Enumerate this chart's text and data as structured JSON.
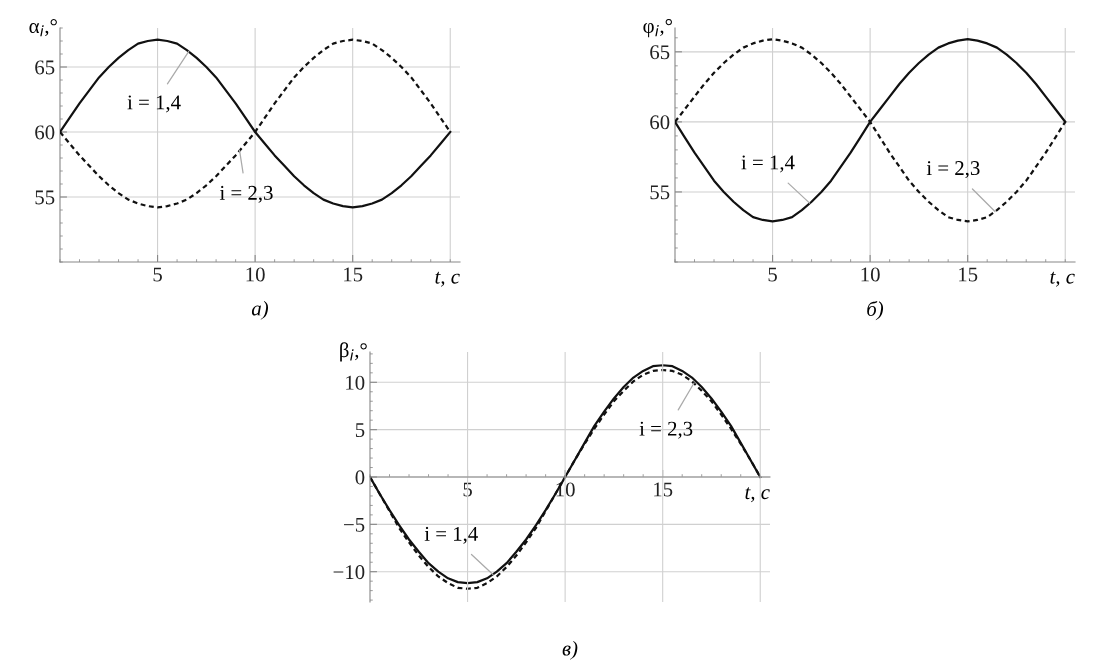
{
  "chart_data": [
    {
      "type": "line",
      "xlabel": "t, c",
      "ylabel": "α$_{i}$,°",
      "xlim": [
        0,
        20.5
      ],
      "ylim": [
        50,
        68
      ],
      "xticks": [
        5,
        10,
        15
      ],
      "ref_lines": [
        {
          "axis": "x",
          "value": 20,
          "color": "#d0d0d0"
        }
      ],
      "yticks": [
        55,
        60,
        65
      ],
      "grid": true,
      "x": [
        0,
        0.5,
        1,
        1.5,
        2,
        2.5,
        3,
        3.5,
        4,
        4.5,
        5,
        5.5,
        6,
        6.5,
        7,
        7.5,
        8,
        8.5,
        9,
        9.5,
        10,
        10.5,
        11,
        11.5,
        12,
        12.5,
        13,
        13.5,
        14,
        14.5,
        15,
        15.5,
        16,
        16.5,
        17,
        17.5,
        18,
        18.5,
        19,
        19.5,
        20
      ],
      "series": [
        {
          "color": "#111111",
          "line_style": "solid",
          "values": [
            60,
            61.1,
            62.2,
            63.2,
            64.2,
            65.0,
            65.7,
            66.3,
            66.8,
            67.0,
            67.1,
            67.0,
            66.8,
            66.3,
            65.7,
            65.0,
            64.2,
            63.2,
            62.2,
            61.1,
            60,
            59.1,
            58.2,
            57.4,
            56.6,
            55.9,
            55.3,
            54.8,
            54.5,
            54.3,
            54.2,
            54.3,
            54.5,
            54.8,
            55.3,
            55.9,
            56.6,
            57.4,
            58.2,
            59.1,
            60
          ]
        },
        {
          "color": "#111111",
          "line_style": "dashed",
          "values": [
            60,
            59.1,
            58.2,
            57.4,
            56.6,
            55.9,
            55.3,
            54.8,
            54.5,
            54.3,
            54.2,
            54.3,
            54.5,
            54.8,
            55.3,
            55.9,
            56.6,
            57.4,
            58.2,
            59.1,
            60,
            61.1,
            62.2,
            63.2,
            64.2,
            65.0,
            65.7,
            66.3,
            66.8,
            67.0,
            67.1,
            67.0,
            66.8,
            66.3,
            65.7,
            65.0,
            64.2,
            63.2,
            62.2,
            61.1,
            60
          ]
        }
      ],
      "annotations": [
        {
          "text": "i = 1,4",
          "x": 6.6,
          "y": 66.2
        },
        {
          "text": "i = 2,3",
          "x": 9.2,
          "y": 58.6
        },
        "а)"
      ]
    },
    {
      "type": "line",
      "xlabel": "t, c",
      "ylabel": "φ$_{i}$,°",
      "xlim": [
        0,
        20.5
      ],
      "ylim": [
        50,
        66.7
      ],
      "xticks": [
        5,
        10,
        15
      ],
      "ref_lines": [
        {
          "axis": "x",
          "value": 20,
          "color": "#d0d0d0"
        }
      ],
      "yticks": [
        55,
        60,
        65
      ],
      "grid": true,
      "x": [
        0,
        0.5,
        1,
        1.5,
        2,
        2.5,
        3,
        3.5,
        4,
        4.5,
        5,
        5.5,
        6,
        6.5,
        7,
        7.5,
        8,
        8.5,
        9,
        9.5,
        10,
        10.5,
        11,
        11.5,
        12,
        12.5,
        13,
        13.5,
        14,
        14.5,
        15,
        15.5,
        16,
        16.5,
        17,
        17.5,
        18,
        18.5,
        19,
        19.5,
        20
      ],
      "series": [
        {
          "color": "#111111",
          "line_style": "solid",
          "values": [
            60,
            58.9,
            57.8,
            56.8,
            55.8,
            55.0,
            54.3,
            53.7,
            53.2,
            53.0,
            52.9,
            53.0,
            53.2,
            53.7,
            54.3,
            55.0,
            55.8,
            56.8,
            57.8,
            58.9,
            60,
            60.9,
            61.8,
            62.7,
            63.5,
            64.2,
            64.8,
            65.3,
            65.6,
            65.8,
            65.9,
            65.8,
            65.6,
            65.3,
            64.8,
            64.2,
            63.5,
            62.7,
            61.8,
            60.9,
            60
          ]
        },
        {
          "color": "#111111",
          "line_style": "dashed",
          "values": [
            60,
            60.9,
            61.8,
            62.7,
            63.5,
            64.2,
            64.8,
            65.3,
            65.6,
            65.8,
            65.9,
            65.8,
            65.6,
            65.3,
            64.8,
            64.2,
            63.5,
            62.7,
            61.8,
            60.9,
            60,
            58.9,
            57.8,
            56.8,
            55.8,
            55.0,
            54.3,
            53.7,
            53.2,
            53.0,
            52.9,
            53.0,
            53.2,
            53.7,
            54.3,
            55.0,
            55.8,
            56.8,
            57.8,
            58.9,
            60
          ]
        }
      ],
      "annotations": [
        {
          "text": "i = 1,4",
          "x": 6.9,
          "y": 54.2
        },
        {
          "text": "i = 2,3",
          "x": 16.4,
          "y": 53.6
        },
        "б)"
      ]
    },
    {
      "type": "line",
      "xlabel": "t, c",
      "ylabel": "β$_{i}$,°",
      "xlim": [
        0,
        20.5
      ],
      "ylim": [
        -13.2,
        13.2
      ],
      "xticks": [
        5,
        10,
        15
      ],
      "ref_lines": [
        {
          "axis": "x",
          "value": 20,
          "color": "#d0d0d0"
        }
      ],
      "yticks": [
        {
          "value": -10,
          "label": "−10"
        },
        {
          "value": -5,
          "label": "−5"
        },
        0,
        5,
        10
      ],
      "grid": true,
      "x": [
        0,
        0.5,
        1,
        1.5,
        2,
        2.5,
        3,
        3.5,
        4,
        4.5,
        5,
        5.5,
        6,
        6.5,
        7,
        7.5,
        8,
        8.5,
        9,
        9.5,
        10,
        10.5,
        11,
        11.5,
        12,
        12.5,
        13,
        13.5,
        14,
        14.5,
        15,
        15.5,
        16,
        16.5,
        17,
        17.5,
        18,
        18.5,
        19,
        19.5,
        20
      ],
      "series": [
        {
          "color": "#111111",
          "line_style": "solid",
          "values": [
            0,
            -1.8,
            -3.5,
            -5.1,
            -6.6,
            -7.9,
            -9.1,
            -10.0,
            -10.7,
            -11.1,
            -11.2,
            -11.1,
            -10.7,
            -10.0,
            -9.1,
            -7.9,
            -6.6,
            -5.1,
            -3.5,
            -1.8,
            0,
            1.8,
            3.6,
            5.4,
            6.9,
            8.3,
            9.5,
            10.5,
            11.2,
            11.7,
            11.8,
            11.7,
            11.2,
            10.5,
            9.5,
            8.3,
            6.9,
            5.4,
            3.6,
            1.8,
            0
          ]
        },
        {
          "color": "#111111",
          "line_style": "dashed",
          "values": [
            0,
            -1.8,
            -3.6,
            -5.4,
            -6.9,
            -8.3,
            -9.5,
            -10.5,
            -11.2,
            -11.7,
            -11.8,
            -11.7,
            -11.2,
            -10.5,
            -9.5,
            -8.3,
            -6.9,
            -5.4,
            -3.6,
            -1.8,
            0,
            1.8,
            3.5,
            5.1,
            6.6,
            8.0,
            9.1,
            10.1,
            10.8,
            11.2,
            11.3,
            11.2,
            10.8,
            10.1,
            9.1,
            8.0,
            6.6,
            5.1,
            3.5,
            1.8,
            0
          ]
        }
      ],
      "annotations": [
        {
          "text": "i = 1,4",
          "x": 6.3,
          "y": -10.3
        },
        {
          "text": "i = 2,3",
          "x": 16.6,
          "y": 9.9
        },
        "в)"
      ]
    }
  ]
}
